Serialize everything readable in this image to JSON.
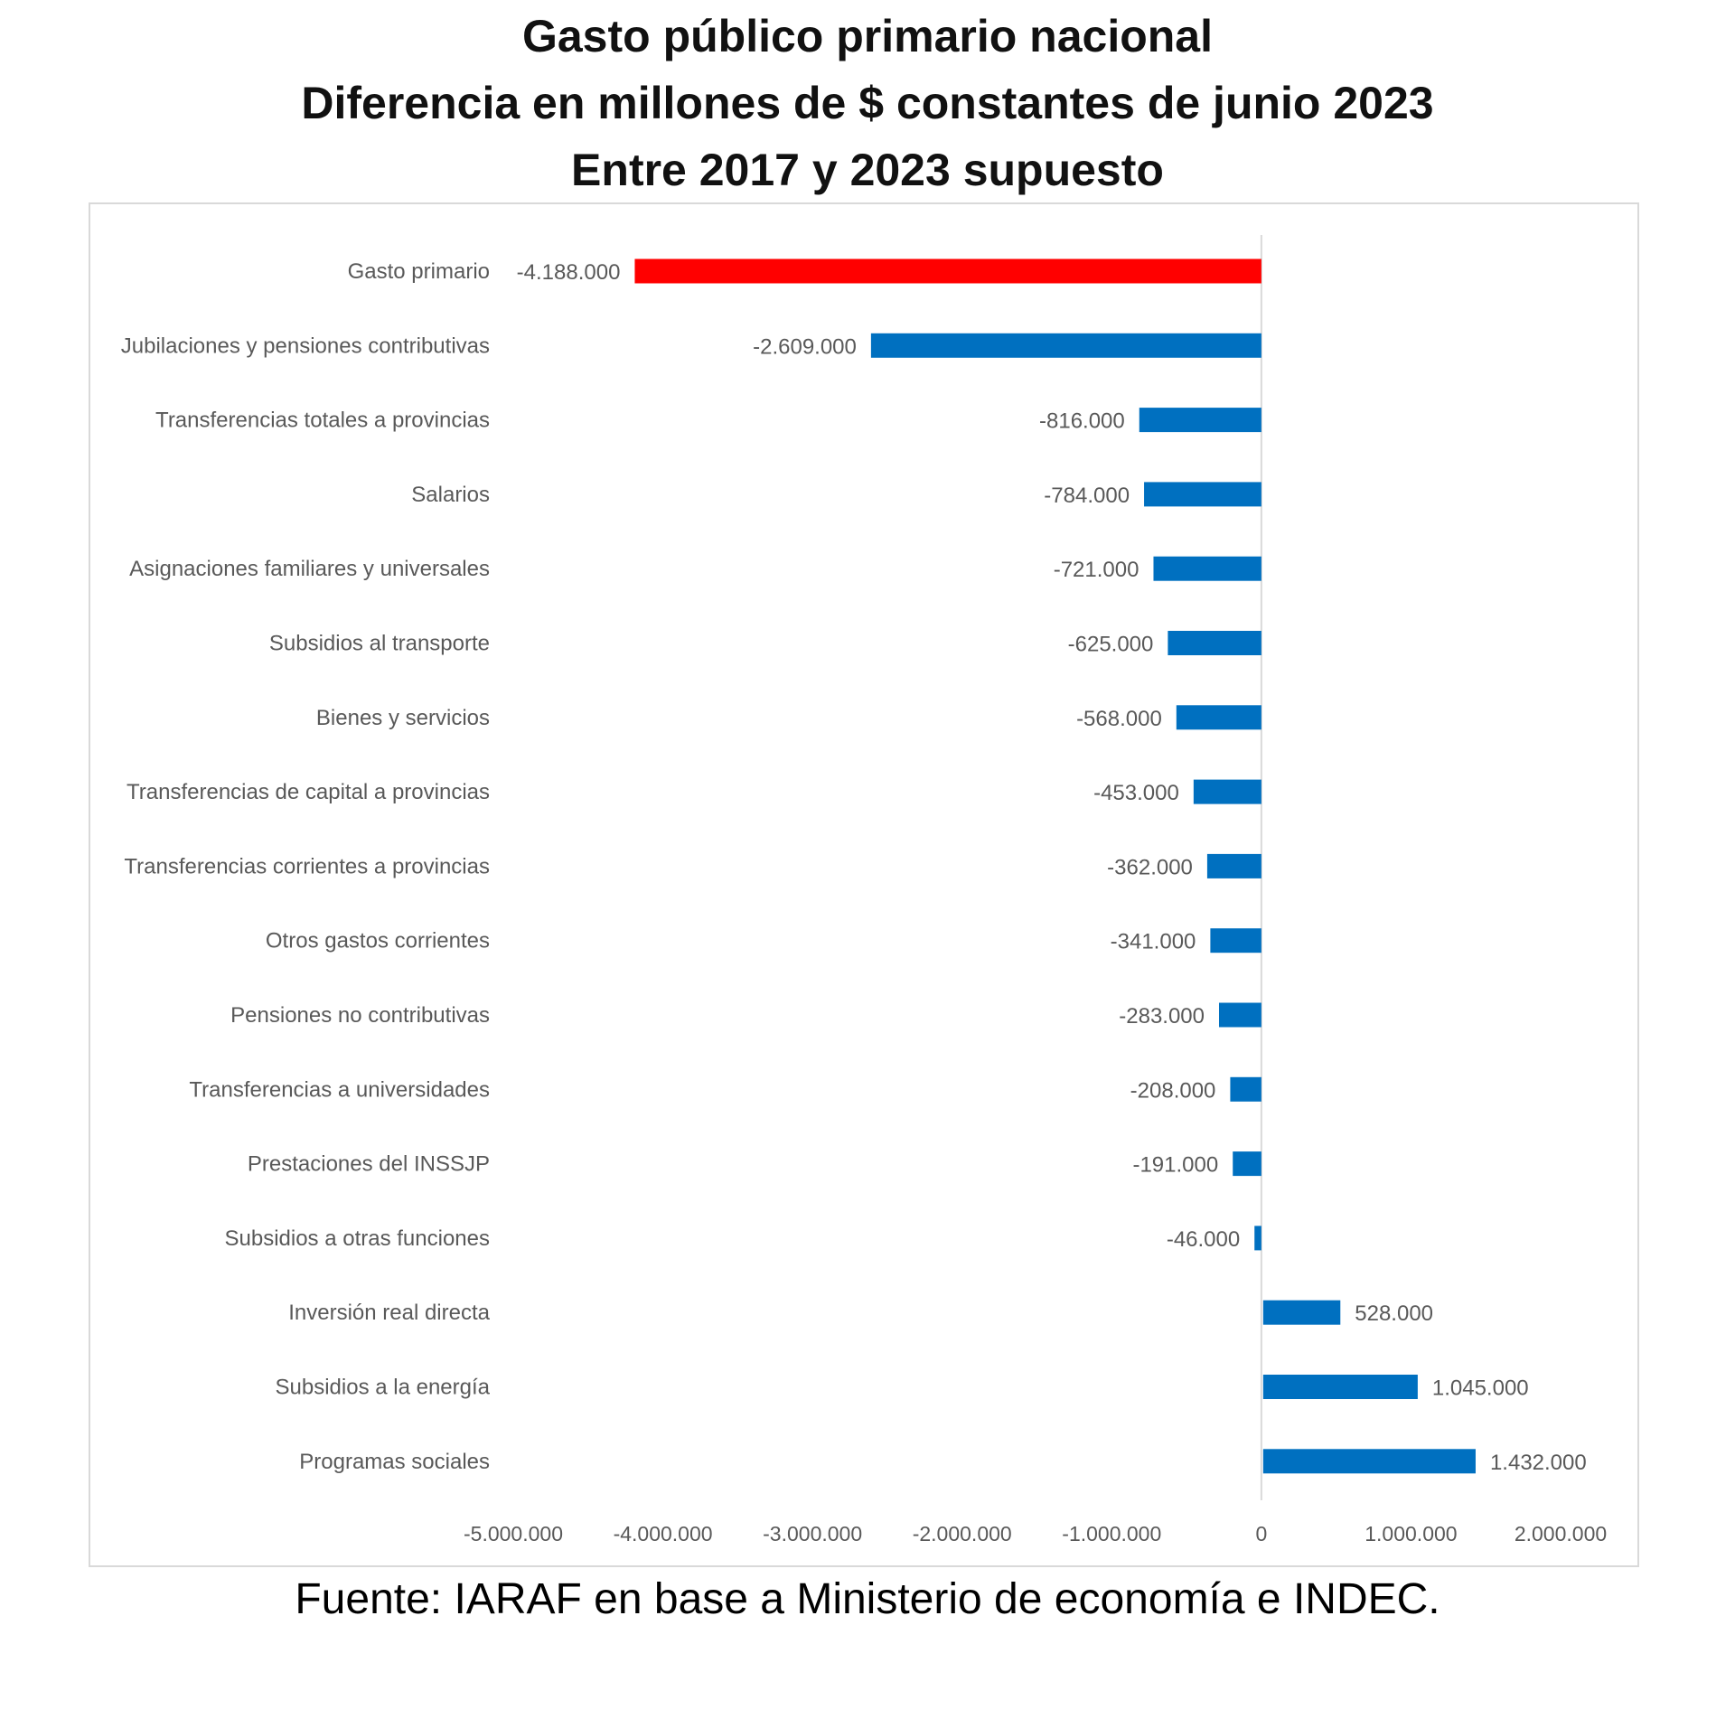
{
  "title_lines": [
    "Gasto público primario nacional",
    "Diferencia en millones de $ constantes de junio 2023",
    "Entre 2017 y 2023 supuesto"
  ],
  "source": "Fuente: IARAF en base a Ministerio de economía e INDEC.",
  "colors": {
    "highlight": "#FF0000",
    "bar": "#0070C0",
    "text": "#595959",
    "axis": "#d9d9d9"
  },
  "chart_data": {
    "type": "bar",
    "orientation": "horizontal",
    "title": "Gasto público primario nacional - Diferencia en millones de $ constantes de junio 2023 - Entre 2017 y 2023 supuesto",
    "categories": [
      "Gasto primario",
      "Jubilaciones y pensiones contributivas",
      "Transferencias totales a provincias",
      "Salarios",
      "Asignaciones familiares y universales",
      "Subsidios al transporte",
      "Bienes y servicios",
      "Transferencias de capital a provincias",
      "Transferencias corrientes a provincias",
      "Otros gastos corrientes",
      "Pensiones no contributivas",
      "Transferencias a universidades",
      "Prestaciones del INSSJP",
      "Subsidios a otras funciones",
      "Inversión real directa",
      "Subsidios a la energía",
      "Programas sociales"
    ],
    "values": [
      -4188000,
      -2609000,
      -816000,
      -784000,
      -721000,
      -625000,
      -568000,
      -453000,
      -362000,
      -341000,
      -283000,
      -208000,
      -191000,
      -46000,
      528000,
      1045000,
      1432000
    ],
    "value_labels": [
      "-4.188.000",
      "-2.609.000",
      "-816.000",
      "-784.000",
      "-721.000",
      "-625.000",
      "-568.000",
      "-453.000",
      "-362.000",
      "-341.000",
      "-283.000",
      "-208.000",
      "-191.000",
      "-46.000",
      "528.000",
      "1.045.000",
      "1.432.000"
    ],
    "highlight_index": 0,
    "xlim": [
      -5000000,
      2000000
    ],
    "xticks": [
      -5000000,
      -4000000,
      -3000000,
      -2000000,
      -1000000,
      0,
      1000000,
      2000000
    ],
    "xtick_labels": [
      "-5.000.000",
      "-4.000.000",
      "-3.000.000",
      "-2.000.000",
      "-1.000.000",
      "0",
      "1.000.000",
      "2.000.000"
    ],
    "xlabel": "",
    "ylabel": "",
    "grid": false,
    "legend": "none"
  }
}
